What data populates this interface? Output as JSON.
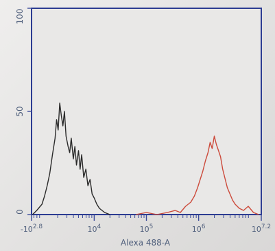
{
  "chart_data": {
    "type": "line",
    "title": "",
    "xlabel": "Alexa 488-A",
    "ylabel": "",
    "xscale": "log",
    "xlim": [
      2.8,
      7.2
    ],
    "ylim": [
      0,
      100
    ],
    "grid": false,
    "legend": "none",
    "y_ticks": [
      {
        "value": 0,
        "label": "0"
      },
      {
        "value": 50,
        "label": "50"
      },
      {
        "value": 100,
        "label": "100"
      }
    ],
    "x_ticks": [
      {
        "value": 2.8,
        "label": "-10^2.8"
      },
      {
        "value": 4,
        "label": "10^4"
      },
      {
        "value": 5,
        "label": "10^5"
      },
      {
        "value": 6,
        "label": "10^6"
      },
      {
        "value": 7.2,
        "label": "10^7.2"
      }
    ],
    "series": [
      {
        "color": "#2a2a2a",
        "x": [
          2.82,
          2.9,
          3.0,
          3.05,
          3.1,
          3.15,
          3.2,
          3.25,
          3.28,
          3.31,
          3.34,
          3.37,
          3.4,
          3.43,
          3.46,
          3.5,
          3.53,
          3.56,
          3.6,
          3.63,
          3.66,
          3.7,
          3.73,
          3.76,
          3.8,
          3.84,
          3.88,
          3.92,
          3.96,
          4.0,
          4.05,
          4.1,
          4.15,
          4.2,
          4.3
        ],
        "y": [
          0,
          2,
          5,
          9,
          14,
          20,
          29,
          37,
          46,
          41,
          54,
          48,
          43,
          50,
          38,
          33,
          30,
          37,
          27,
          33,
          24,
          31,
          22,
          29,
          18,
          22,
          14,
          17,
          10,
          8,
          5,
          3,
          2,
          1,
          0
        ]
      },
      {
        "color": "#cc4a3b",
        "x": [
          4.8,
          5.0,
          5.2,
          5.4,
          5.55,
          5.65,
          5.75,
          5.85,
          5.92,
          5.98,
          6.03,
          6.08,
          6.13,
          6.18,
          6.22,
          6.26,
          6.3,
          6.34,
          6.38,
          6.42,
          6.46,
          6.5,
          6.55,
          6.6,
          6.65,
          6.7,
          6.78,
          6.86,
          6.95,
          7.05,
          7.15
        ],
        "y": [
          0,
          1,
          0,
          1,
          2,
          1,
          4,
          6,
          9,
          13,
          17,
          21,
          26,
          30,
          35,
          32,
          38,
          34,
          31,
          28,
          22,
          18,
          13,
          10,
          7,
          5,
          3,
          2,
          4,
          1,
          0
        ]
      }
    ]
  }
}
